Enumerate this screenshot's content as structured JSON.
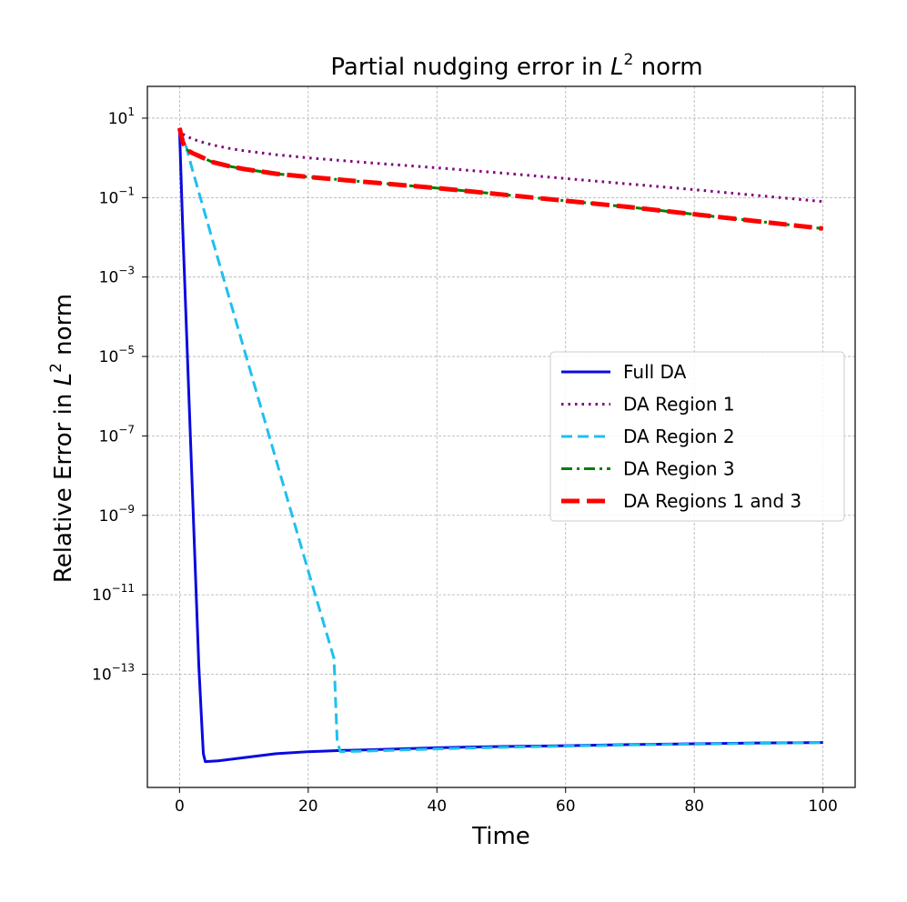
{
  "chart_data": {
    "type": "line",
    "title": "Partial nudging error in",
    "title_math": "L",
    "title_math_sup": "2",
    "title_suffix": "norm",
    "xlabel": "Time",
    "ylabel": "Relative Error in",
    "ylabel_math": "L",
    "ylabel_math_sup": "2",
    "ylabel_suffix": "norm",
    "xlim": [
      -5,
      105
    ],
    "ylim_log10": [
      -15.85,
      1.8
    ],
    "yscale": "log",
    "grid": true,
    "legend_location": "center-right",
    "x_ticks": [
      0,
      20,
      40,
      60,
      80,
      100
    ],
    "y_ticks": [
      {
        "base": "10",
        "exp": "1",
        "value_log10": 1
      },
      {
        "base": "10",
        "exp": "−1",
        "value_log10": -1
      },
      {
        "base": "10",
        "exp": "−3",
        "value_log10": -3
      },
      {
        "base": "10",
        "exp": "−5",
        "value_log10": -5
      },
      {
        "base": "10",
        "exp": "−7",
        "value_log10": -7
      },
      {
        "base": "10",
        "exp": "−9",
        "value_log10": -9
      },
      {
        "base": "10",
        "exp": "−11",
        "value_log10": -11
      },
      {
        "base": "10",
        "exp": "−13",
        "value_log10": -13
      }
    ],
    "series": [
      {
        "name": "Full DA",
        "color": "#0a0adf",
        "style": "solid",
        "x": [
          0,
          0.5,
          1.0,
          1.5,
          2.0,
          2.5,
          3.0,
          3.5,
          3.7,
          4,
          6,
          10,
          15,
          20,
          25,
          30,
          40,
          50,
          60,
          70,
          80,
          90,
          100
        ],
        "log10_y": [
          0.7,
          -1.8,
          -4.0,
          -6.2,
          -8.4,
          -10.6,
          -12.8,
          -14.4,
          -15.0,
          -15.2,
          -15.18,
          -15.1,
          -15.0,
          -14.95,
          -14.92,
          -14.9,
          -14.85,
          -14.82,
          -14.8,
          -14.77,
          -14.75,
          -14.73,
          -14.72
        ]
      },
      {
        "name": "DA Region 1",
        "color": "#800080",
        "style": "dotted",
        "x": [
          0,
          0.5,
          1,
          2,
          3,
          5,
          8,
          10,
          15,
          20,
          30,
          40,
          50,
          60,
          70,
          80,
          90,
          100
        ],
        "log10_y": [
          0.75,
          0.6,
          0.55,
          0.48,
          0.42,
          0.33,
          0.23,
          0.18,
          0.08,
          0.0,
          -0.13,
          -0.25,
          -0.38,
          -0.52,
          -0.66,
          -0.8,
          -0.95,
          -1.1
        ]
      },
      {
        "name": "DA Region 2",
        "color": "#1ec0f0",
        "style": "dashed",
        "x": [
          0,
          1,
          2,
          5,
          10,
          15,
          20,
          24,
          24.5,
          25,
          30,
          40,
          50,
          60,
          70,
          80,
          90,
          100
        ],
        "log10_y": [
          0.7,
          0.3,
          -0.3,
          -2.0,
          -4.8,
          -7.6,
          -10.4,
          -12.6,
          -14.7,
          -14.95,
          -14.93,
          -14.88,
          -14.84,
          -14.81,
          -14.78,
          -14.76,
          -14.74,
          -14.72
        ]
      },
      {
        "name": "DA Region 3",
        "color": "#008000",
        "style": "dashdot",
        "x": [
          0,
          0.5,
          1,
          2,
          3,
          5,
          8,
          10,
          15,
          20,
          30,
          40,
          50,
          60,
          70,
          80,
          90,
          100
        ],
        "log10_y": [
          0.75,
          0.4,
          0.22,
          0.12,
          0.05,
          -0.1,
          -0.22,
          -0.28,
          -0.4,
          -0.48,
          -0.62,
          -0.76,
          -0.92,
          -1.08,
          -1.24,
          -1.42,
          -1.6,
          -1.78
        ]
      },
      {
        "name": "DA Regions 1 and 3",
        "color": "#ff0000",
        "style": "longdash",
        "x": [
          0,
          0.5,
          1,
          2,
          3,
          5,
          8,
          10,
          15,
          20,
          30,
          40,
          50,
          60,
          70,
          80,
          90,
          100
        ],
        "log10_y": [
          0.75,
          0.4,
          0.22,
          0.12,
          0.05,
          -0.1,
          -0.22,
          -0.28,
          -0.4,
          -0.48,
          -0.62,
          -0.76,
          -0.92,
          -1.08,
          -1.24,
          -1.42,
          -1.6,
          -1.78
        ]
      }
    ]
  }
}
